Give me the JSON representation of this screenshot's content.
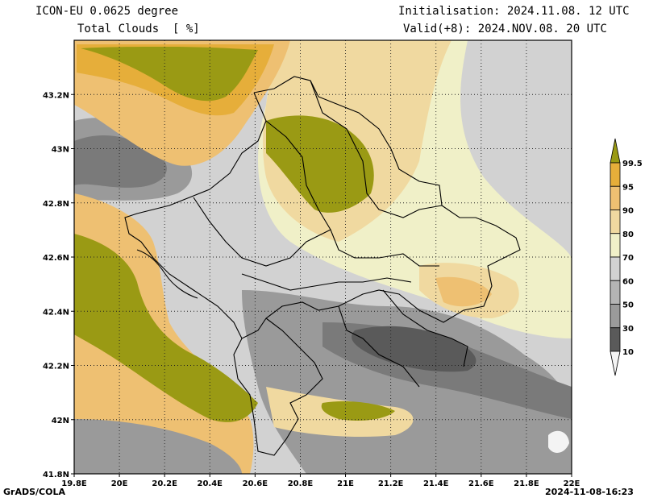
{
  "header": {
    "model": "ICON-EU 0.0625 degree",
    "variable": "Total Clouds  [ %]",
    "init": "Initialisation: 2024.11.08. 12 UTC",
    "valid": "Valid(+8): 2024.NOV.08. 20 UTC"
  },
  "map": {
    "lon_range": [
      19.8,
      22.0
    ],
    "lat_range": [
      41.8,
      43.4
    ],
    "lon_labels": [
      "19.8E",
      "20E",
      "20.2E",
      "20.4E",
      "20.6E",
      "20.8E",
      "21E",
      "21.2E",
      "21.4E",
      "21.6E",
      "21.8E",
      "22E"
    ],
    "lat_labels": [
      "41.8N",
      "42N",
      "42.2N",
      "42.4N",
      "42.6N",
      "42.8N",
      "43N",
      "43.2N"
    ],
    "grid": "dotted"
  },
  "colorbar": {
    "labels": [
      "99.5",
      "95",
      "90",
      "80",
      "70",
      "60",
      "50",
      "30",
      "10"
    ],
    "colors": {
      "c0": "#f4f4f4",
      "c10": "#5a5a5a",
      "c30": "#7a7a7a",
      "c50": "#9a9a9a",
      "c60": "#b4b4b4",
      "c70": "#d2d2d2",
      "c80": "#f0f0c8",
      "c90": "#f0d9a0",
      "c95": "#eec072",
      "c99": "#e6ae3a",
      "c100": "#9a9a14"
    }
  },
  "footer": {
    "credit": "GrADS/COLA",
    "timestamp": "2024-11-08-16:23"
  }
}
